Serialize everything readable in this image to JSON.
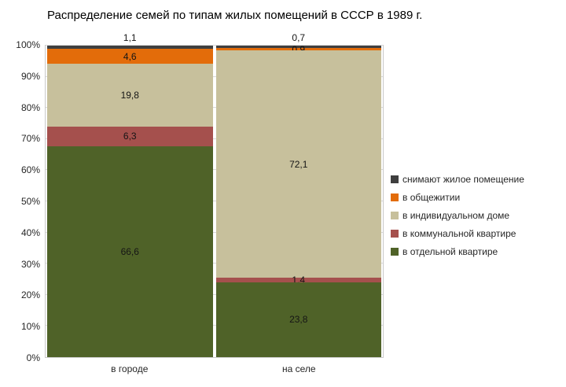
{
  "chart_data": {
    "type": "bar",
    "stacked": true,
    "normalized_percent": true,
    "title": "Распределение семей по типам жилых помещений в СССР в 1989 г.",
    "categories": [
      "в городе",
      "на селе"
    ],
    "series": [
      {
        "name": "в отдельной квартире",
        "color": "#4f6228",
        "values": [
          66.6,
          23.8
        ]
      },
      {
        "name": "в коммунальной квартире",
        "color": "#a5504d",
        "values": [
          6.3,
          1.4
        ]
      },
      {
        "name": "в индивидуальном доме",
        "color": "#c7c09c",
        "values": [
          19.8,
          72.1
        ]
      },
      {
        "name": "в общежитии",
        "color": "#e36c0a",
        "values": [
          4.6,
          0.9
        ]
      },
      {
        "name": "снимают жилое помещение",
        "color": "#3f3f3f",
        "values": [
          1.1,
          0.7
        ]
      }
    ],
    "legend_order": [
      "снимают жилое помещение",
      "в общежитии",
      "в индивидуальном доме",
      "в коммунальной квартире",
      "в отдельной квартире"
    ],
    "legend_position": "right",
    "y_ticks": [
      "0%",
      "10%",
      "20%",
      "30%",
      "40%",
      "50%",
      "60%",
      "70%",
      "80%",
      "90%",
      "100%"
    ],
    "ylim": [
      0,
      100
    ],
    "xlabel": "",
    "ylabel": "",
    "grid": true,
    "label_format": "comma-decimal",
    "data_labels": {
      "в городе": {
        "в отдельной квартире": "66,6",
        "в коммунальной квартире": "6,3",
        "в индивидуальном доме": "19,8",
        "в общежитии": "4,6",
        "снимают жилое помещение": "1,1"
      },
      "на селе": {
        "в отдельной квартире": "23,8",
        "в коммунальной квартире": "1,4",
        "в индивидуальном доме": "72,1",
        "в общежитии": "0,9",
        "снимают жилое помещение": "0,7"
      }
    }
  }
}
